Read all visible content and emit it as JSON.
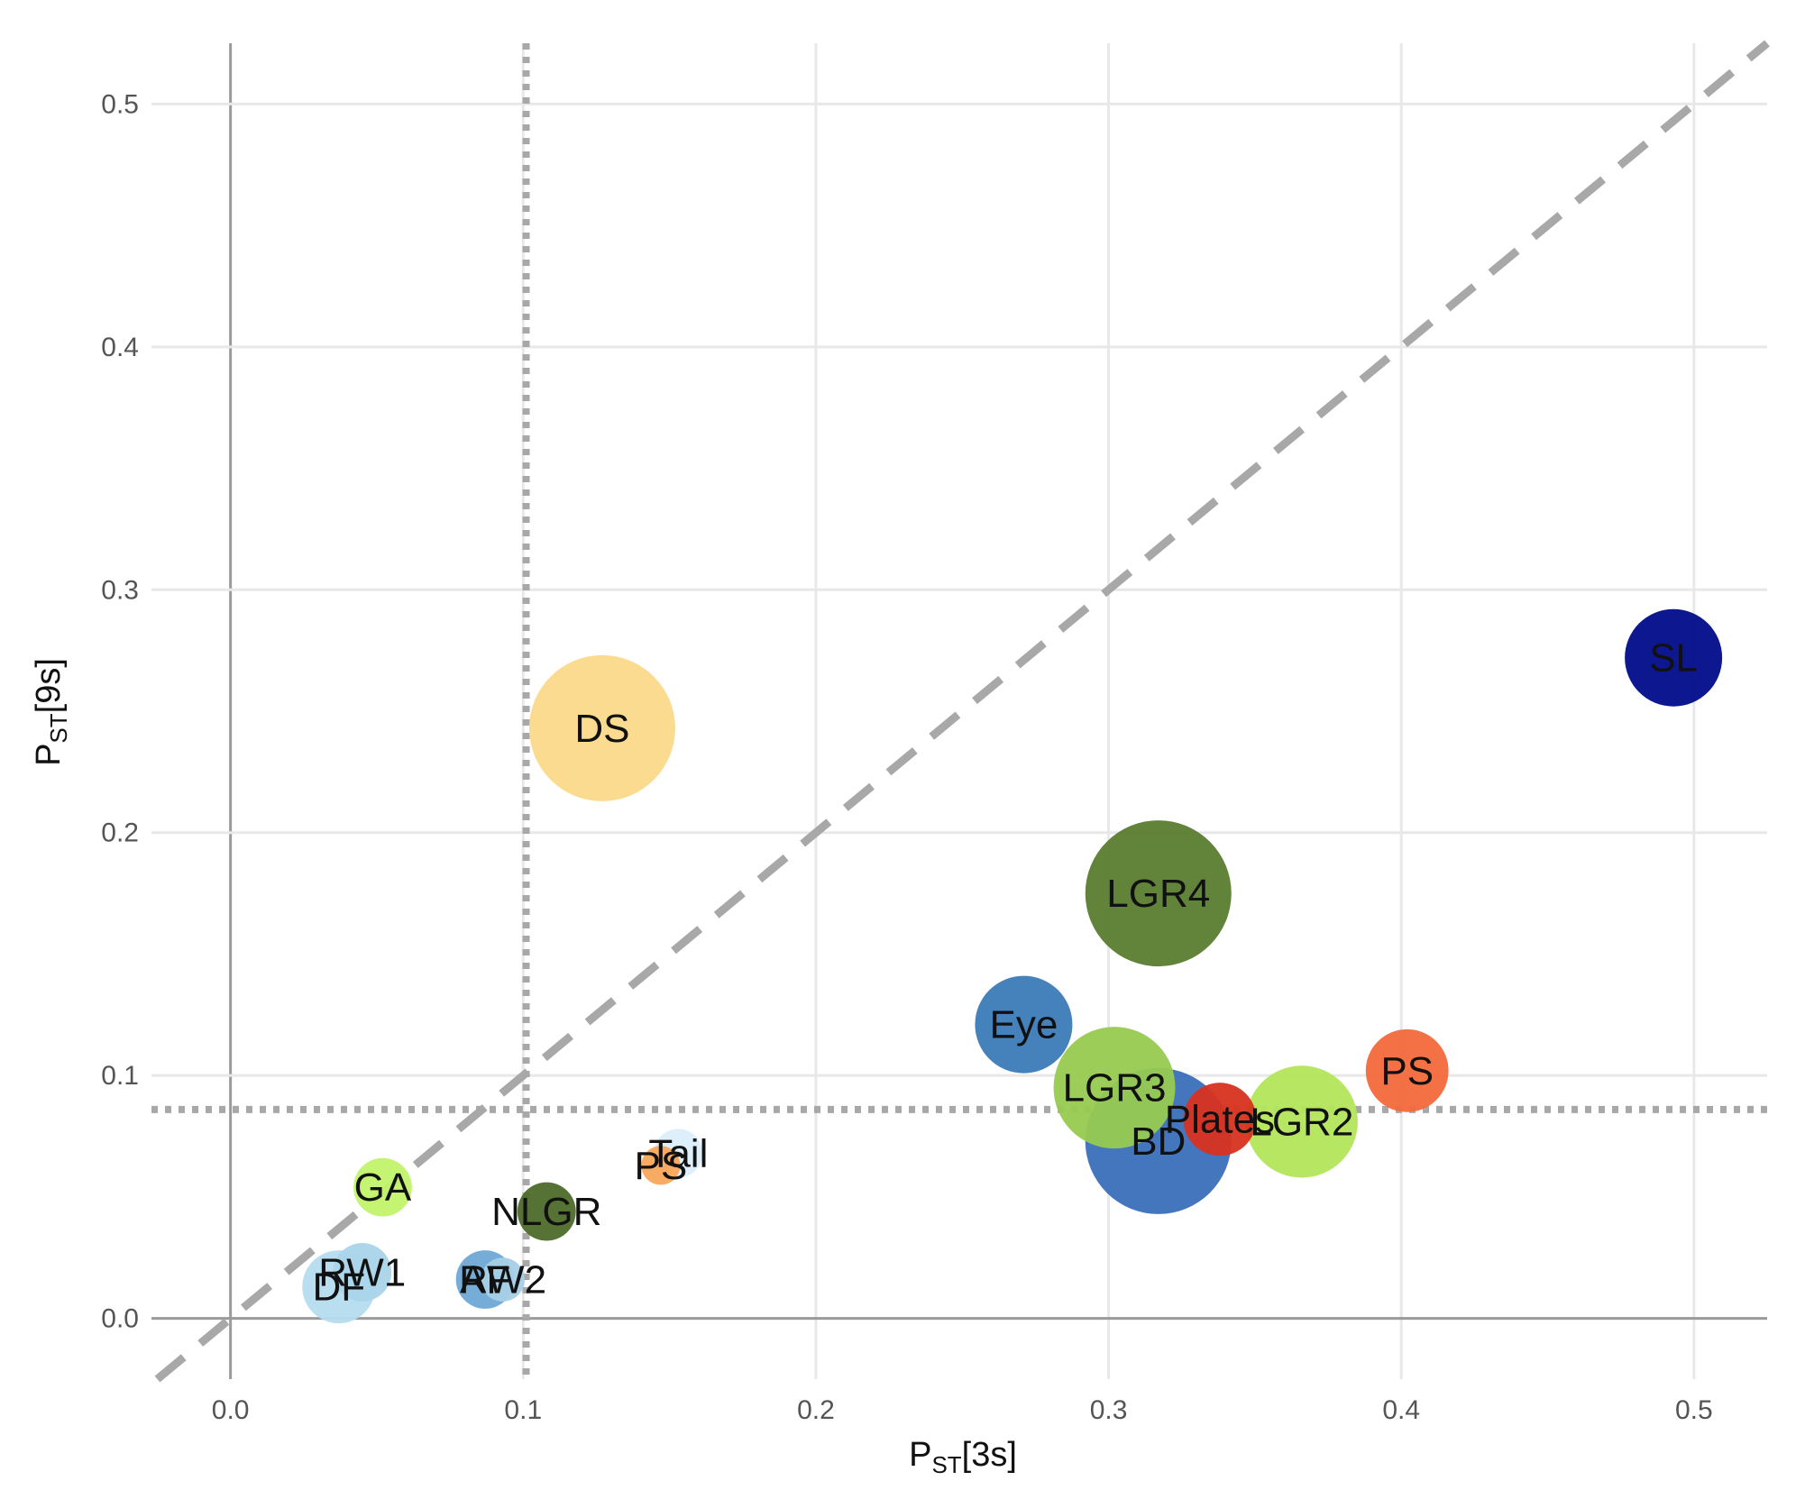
{
  "chart_data": {
    "type": "scatter",
    "xlabel": {
      "main": "P",
      "sub": "ST",
      "rest": "[3s]"
    },
    "ylabel": {
      "main": "P",
      "sub": "ST",
      "rest": "[9s]"
    },
    "xlim": [
      -0.027,
      0.525
    ],
    "ylim": [
      -0.025,
      0.525
    ],
    "x_ticks": [
      0.0,
      0.1,
      0.2,
      0.3,
      0.4,
      0.5
    ],
    "y_ticks": [
      0.0,
      0.1,
      0.2,
      0.3,
      0.4,
      0.5
    ],
    "x_tick_labels": [
      "0.0",
      "0.1",
      "0.2",
      "0.3",
      "0.4",
      "0.5"
    ],
    "y_tick_labels": [
      "0.0",
      "0.1",
      "0.2",
      "0.3",
      "0.4",
      "0.5"
    ],
    "grid": true,
    "reference_lines": {
      "identity_diagonal": "dashed",
      "vertical_dotted_x": 0.101,
      "horizontal_dotted_y": 0.086
    },
    "points": [
      {
        "label": "SL",
        "x": 0.493,
        "y": 0.272,
        "size": 2,
        "color": "#000c8a"
      },
      {
        "label": "DS",
        "x": 0.127,
        "y": 0.243,
        "size": 3,
        "color": "#fbd98a"
      },
      {
        "label": "LGR4",
        "x": 0.317,
        "y": 0.175,
        "size": 3,
        "color": "#5a7c2f"
      },
      {
        "label": "Eye",
        "x": 0.271,
        "y": 0.121,
        "size": 2,
        "color": "#3b7bb8"
      },
      {
        "label": "BD",
        "x": 0.317,
        "y": 0.073,
        "size": 3,
        "color": "#3a6fba"
      },
      {
        "label": "LGR3",
        "x": 0.302,
        "y": 0.095,
        "size": 2.5,
        "color": "#97ca50"
      },
      {
        "label": "Plates",
        "x": 0.338,
        "y": 0.082,
        "size": 1.5,
        "color": "#d8321f"
      },
      {
        "label": "LGR2",
        "x": 0.366,
        "y": 0.081,
        "size": 2.3,
        "color": "#b2e55a"
      },
      {
        "label": "PS",
        "x": 0.402,
        "y": 0.102,
        "size": 1.7,
        "color": "#f2693a"
      },
      {
        "label": "Tail",
        "x": 0.153,
        "y": 0.068,
        "size": 1,
        "color": "#dbeefa"
      },
      {
        "label": "PS",
        "x": 0.147,
        "y": 0.063,
        "size": 0.8,
        "color": "#f8a65a"
      },
      {
        "label": "GA",
        "x": 0.052,
        "y": 0.054,
        "size": 1.2,
        "color": "#c1f36a"
      },
      {
        "label": "NLGR",
        "x": 0.108,
        "y": 0.044,
        "size": 1.2,
        "color": "#4d6b2a"
      },
      {
        "label": "RW1",
        "x": 0.045,
        "y": 0.019,
        "size": 1.2,
        "color": "#a9d4ea"
      },
      {
        "label": "DF",
        "x": 0.037,
        "y": 0.013,
        "size": 1.5,
        "color": "#b5dcef"
      },
      {
        "label": "AF",
        "x": 0.087,
        "y": 0.016,
        "size": 1.2,
        "color": "#6ea8d6"
      },
      {
        "label": "RW2",
        "x": 0.093,
        "y": 0.016,
        "size": 0.9,
        "color": "#a6cfe7"
      }
    ]
  }
}
